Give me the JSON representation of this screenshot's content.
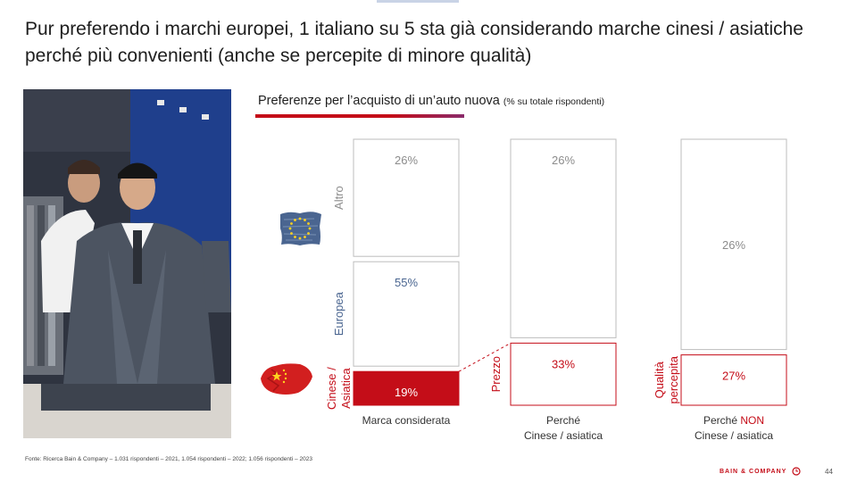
{
  "slide": {
    "title": "Pur preferendo i marchi europei, 1 italiano su 5 sta già considerando marche cinesi / asiatiche perché più convenienti (anche se percepite di minore qualità)",
    "footnote": "Fonte: Ricerca Bain & Company – 1.031 rispondenti – 2021, 1.054 rispondenti – 2022; 1.056 rispondenti – 2023",
    "brand": "BAIN & COMPANY",
    "page_number": "44"
  },
  "colors": {
    "accent_red": "#c40d18",
    "europe_blue": "#4a6590",
    "border_grey": "#bdbdbd",
    "text_grey": "#8c8c8c"
  },
  "chart_data": {
    "type": "bar",
    "stacking": "stacked-100",
    "title": "Preferenze per l’acquisto di un’auto nuova",
    "subtitle": "(% su totale rispondenti)",
    "categories": [
      "Marca considerata",
      "Perché Cinese / asiatica",
      "Perché NON Cinese / asiatica"
    ],
    "columns": [
      {
        "label_lines": [
          "Marca considerata"
        ],
        "segments": [
          {
            "label": "Altro",
            "value": 26,
            "text": "26%",
            "style": "grey"
          },
          {
            "label": "Europea",
            "value": 55,
            "text": "55%",
            "style": "blue"
          },
          {
            "label": "Cinese / Asiatica",
            "value": 19,
            "text": "19%",
            "style": "filled-red"
          }
        ]
      },
      {
        "label_lines": [
          "Perché",
          "Cinese / asiatica"
        ],
        "segments": [
          {
            "label": "",
            "value": 26,
            "text": "26%",
            "style": "grey"
          },
          {
            "label": "Prezzo",
            "value": 33,
            "text": "33%",
            "style": "red-outline"
          }
        ]
      },
      {
        "label_lines": [
          "Perché NON",
          "Cinese / asiatica"
        ],
        "segments": [
          {
            "label": "",
            "value": 26,
            "text": "26%",
            "style": "grey"
          },
          {
            "label": "Qualità percepita",
            "value": 27,
            "text": "27%",
            "style": "red-outline"
          }
        ]
      }
    ],
    "side_labels": [
      "Altro",
      "Europea",
      "Cinese / Asiatica",
      "Prezzo",
      "Qualità percepita"
    ],
    "icons": [
      "eu-flag-icon",
      "china-flag-icon"
    ],
    "legend": "none",
    "grid": false
  }
}
